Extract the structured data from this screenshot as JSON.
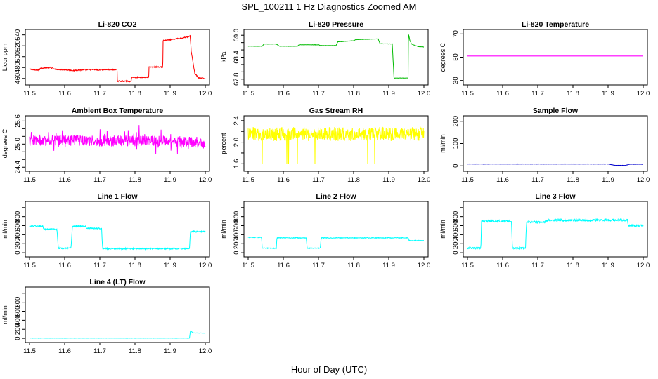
{
  "figure": {
    "title": "SPL_100211  1 Hz Diagnostics Zoomed AM",
    "xlabel": "Hour of Day (UTC)"
  },
  "chart_data": [
    {
      "type": "line",
      "title": "Li-820 CO2",
      "ylabel": "Licor ppm",
      "color": "#ff0000",
      "xlim": [
        11.5,
        12.0
      ],
      "ylim": [
        452,
        546
      ],
      "yticks": [
        460,
        480,
        500,
        520,
        540
      ],
      "xticks": [
        11.5,
        11.6,
        11.7,
        11.8,
        11.9,
        12.0
      ],
      "noise": 1.0,
      "x": [
        11.5,
        11.51,
        11.52,
        11.529,
        11.53,
        11.56,
        11.569,
        11.57,
        11.6,
        11.62,
        11.629,
        11.63,
        11.67,
        11.69,
        11.699,
        11.7,
        11.74,
        11.749,
        11.75,
        11.78,
        11.789,
        11.79,
        11.83,
        11.839,
        11.84,
        11.875,
        11.879,
        11.88,
        11.94,
        11.955,
        11.957,
        11.96,
        11.965,
        11.97,
        11.98,
        12.0
      ],
      "y": [
        477,
        476,
        475,
        476,
        479,
        480,
        478,
        477,
        476,
        475,
        474,
        475,
        476,
        476,
        475,
        476,
        476,
        476,
        455,
        455,
        454,
        462,
        462,
        462,
        481,
        481,
        481,
        529,
        535,
        537,
        539,
        510,
        490,
        470,
        461,
        460
      ]
    },
    {
      "type": "line",
      "title": "Li-820 Pressure",
      "ylabel": "kPa",
      "color": "#00bb00",
      "xlim": [
        11.5,
        12.0
      ],
      "ylim": [
        67.7,
        69.1
      ],
      "yticks": [
        67.8,
        68.0,
        68.2,
        68.4,
        68.6,
        68.8,
        69.0
      ],
      "ytick_labels": [
        "67.8",
        "",
        "",
        "68.4",
        "",
        "",
        "69.0"
      ],
      "xticks": [
        11.5,
        11.6,
        11.7,
        11.8,
        11.9,
        12.0
      ],
      "noise": 0.004,
      "x": [
        11.5,
        11.54,
        11.545,
        11.58,
        11.59,
        11.64,
        11.645,
        11.7,
        11.705,
        11.75,
        11.755,
        11.8,
        11.805,
        11.87,
        11.875,
        11.91,
        11.915,
        11.955,
        11.956,
        11.96,
        11.965,
        11.975,
        11.985,
        12.0
      ],
      "y": [
        68.7,
        68.7,
        68.76,
        68.76,
        68.7,
        68.7,
        68.74,
        68.74,
        68.72,
        68.72,
        68.82,
        68.85,
        68.88,
        68.9,
        68.77,
        68.76,
        67.83,
        67.83,
        69.05,
        68.86,
        68.76,
        68.72,
        68.69,
        68.68
      ]
    },
    {
      "type": "line",
      "title": "Li-820 Temperature",
      "ylabel": "degrees C",
      "color": "#ff00ff",
      "xlim": [
        11.5,
        12.0
      ],
      "ylim": [
        28,
        72
      ],
      "yticks": [
        30,
        50,
        70
      ],
      "xticks": [
        11.5,
        11.6,
        11.7,
        11.8,
        11.9,
        12.0
      ],
      "noise": 0,
      "x": [
        11.5,
        12.0
      ],
      "y": [
        51,
        51
      ]
    },
    {
      "type": "line",
      "title": "Ambient Box Temperature",
      "ylabel": "degrees C",
      "color": "#ff00ff",
      "xlim": [
        11.5,
        12.0
      ],
      "ylim": [
        24.35,
        25.68
      ],
      "yticks": [
        24.4,
        24.6,
        24.8,
        25.0,
        25.2,
        25.4,
        25.6
      ],
      "ytick_labels": [
        "24.4",
        "",
        "",
        "25.0",
        "",
        "",
        "25.6"
      ],
      "xticks": [
        11.5,
        11.6,
        11.7,
        11.8,
        11.9,
        12.0
      ],
      "noise": 0.14,
      "spikes": 0.12,
      "x": [
        11.5,
        11.6,
        11.7,
        11.8,
        11.9,
        12.0
      ],
      "y": [
        25.1,
        25.1,
        25.08,
        25.08,
        25.08,
        25.05
      ]
    },
    {
      "type": "line",
      "title": "Gas Stream RH",
      "ylabel": "percent",
      "color": "#ffff00",
      "xlim": [
        11.5,
        12.0
      ],
      "ylim": [
        1.5,
        2.45
      ],
      "yticks": [
        1.6,
        1.8,
        2.0,
        2.2,
        2.4
      ],
      "ytick_labels": [
        "1.6",
        "",
        "2.0",
        "",
        "2.4"
      ],
      "xticks": [
        11.5,
        11.6,
        11.7,
        11.8,
        11.9,
        12.0
      ],
      "noise": 0.13,
      "spikes_down": [
        11.54,
        11.61,
        11.615,
        11.64,
        11.69,
        11.84,
        11.86
      ],
      "x": [
        11.5,
        11.6,
        11.7,
        11.8,
        11.9,
        12.0
      ],
      "y": [
        2.15,
        2.15,
        2.15,
        2.15,
        2.15,
        2.15
      ]
    },
    {
      "type": "line",
      "title": "Sample Flow",
      "ylabel": "ml/min",
      "color": "#0000cc",
      "xlim": [
        11.5,
        12.0
      ],
      "ylim": [
        -15,
        215
      ],
      "yticks": [
        0,
        100,
        200
      ],
      "xticks": [
        11.5,
        11.6,
        11.7,
        11.8,
        11.9,
        12.0
      ],
      "noise": 0.6,
      "x": [
        11.5,
        11.9,
        11.92,
        11.95,
        11.96,
        12.0
      ],
      "y": [
        8,
        8,
        2,
        2,
        7,
        7
      ]
    },
    {
      "type": "line",
      "title": "Line 1 Flow",
      "ylabel": "ml/min",
      "color": "#00ffff",
      "xlim": [
        11.5,
        12.0
      ],
      "ylim": [
        -45,
        1090
      ],
      "yticks": [
        0,
        200,
        400,
        600,
        800,
        1000
      ],
      "ytick_labels": [
        "0",
        "200",
        "400",
        "600",
        "800",
        ""
      ],
      "xticks": [
        11.5,
        11.6,
        11.7,
        11.8,
        11.9,
        12.0
      ],
      "noise": 14,
      "x": [
        11.5,
        11.538,
        11.54,
        11.578,
        11.582,
        11.618,
        11.622,
        11.66,
        11.662,
        11.705,
        11.708,
        11.955,
        11.958,
        12.0
      ],
      "y": [
        590,
        590,
        520,
        520,
        100,
        100,
        590,
        590,
        540,
        540,
        90,
        90,
        470,
        470
      ]
    },
    {
      "type": "line",
      "title": "Line 2 Flow",
      "ylabel": "ml/min",
      "color": "#00ffff",
      "xlim": [
        11.5,
        12.0
      ],
      "ylim": [
        -45,
        1090
      ],
      "yticks": [
        0,
        200,
        400,
        600,
        800,
        1000
      ],
      "ytick_labels": [
        "0",
        "200",
        "400",
        "600",
        "800",
        ""
      ],
      "xticks": [
        11.5,
        11.6,
        11.7,
        11.8,
        11.9,
        12.0
      ],
      "noise": 8,
      "x": [
        11.5,
        11.538,
        11.54,
        11.58,
        11.582,
        11.665,
        11.668,
        11.705,
        11.708,
        11.955,
        11.958,
        12.0
      ],
      "y": [
        340,
        340,
        100,
        100,
        330,
        330,
        100,
        100,
        330,
        330,
        270,
        270
      ]
    },
    {
      "type": "line",
      "title": "Line 3 Flow",
      "ylabel": "ml/min",
      "color": "#00ffff",
      "xlim": [
        11.5,
        12.0
      ],
      "ylim": [
        -45,
        1090
      ],
      "yticks": [
        0,
        200,
        400,
        600,
        800,
        1000
      ],
      "ytick_labels": [
        "0",
        "200",
        "400",
        "600",
        "800",
        ""
      ],
      "xticks": [
        11.5,
        11.6,
        11.7,
        11.8,
        11.9,
        12.0
      ],
      "noise": 22,
      "x": [
        11.5,
        11.538,
        11.54,
        11.625,
        11.628,
        11.665,
        11.668,
        11.72,
        11.73,
        11.955,
        11.958,
        12.0
      ],
      "y": [
        100,
        100,
        700,
        700,
        100,
        100,
        680,
        680,
        720,
        720,
        600,
        600
      ]
    },
    {
      "type": "line",
      "title": "Line 4 (LT) Flow",
      "ylabel": "ml/min",
      "color": "#00ffff",
      "xlim": [
        11.5,
        12.0
      ],
      "ylim": [
        -45,
        1090
      ],
      "yticks": [
        0,
        200,
        400,
        600,
        800,
        1000
      ],
      "ytick_labels": [
        "0",
        "200",
        "400",
        "600",
        "800",
        ""
      ],
      "xticks": [
        11.5,
        11.6,
        11.7,
        11.8,
        11.9,
        12.0
      ],
      "noise": 3,
      "x": [
        11.5,
        11.955,
        11.958,
        11.965,
        12.0
      ],
      "y": [
        5,
        5,
        170,
        120,
        115
      ]
    }
  ]
}
